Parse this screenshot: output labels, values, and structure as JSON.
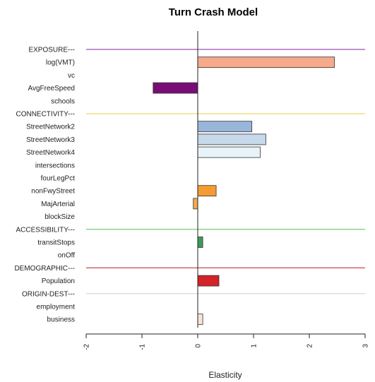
{
  "chart_data": {
    "type": "bar",
    "orientation": "horizontal",
    "title": "Turn Crash Model",
    "xlabel": "Elasticity",
    "ylabel": "",
    "xlim": [
      -2,
      3
    ],
    "xticks": [
      "-2",
      "-1",
      "0",
      "1",
      "2",
      "3"
    ],
    "grid": false,
    "categories": [
      {
        "label": "EXPOSURE---",
        "group": true,
        "color": "#9b4fb5"
      },
      {
        "label": "log(VMT)",
        "value": 2.45,
        "color": "#f7a98c"
      },
      {
        "label": "vc",
        "value": null
      },
      {
        "label": "AvgFreeSpeed",
        "value": -0.8,
        "color": "#7a0c77"
      },
      {
        "label": "schools",
        "value": null
      },
      {
        "label": "CONNECTIVITY---",
        "group": true,
        "color": "#e9d86a"
      },
      {
        "label": "StreetNetwork2",
        "value": 0.97,
        "color": "#98b6da"
      },
      {
        "label": "StreetNetwork3",
        "value": 1.22,
        "color": "#c6d8ea"
      },
      {
        "label": "StreetNetwork4",
        "value": 1.12,
        "color": "#e7f3f8"
      },
      {
        "label": "intersections",
        "value": null
      },
      {
        "label": "fourLegPct",
        "value": null
      },
      {
        "label": "nonFwyStreet",
        "value": 0.33,
        "color": "#f59b33"
      },
      {
        "label": "MajArterial",
        "value": -0.08,
        "color": "#f0aa4a"
      },
      {
        "label": "blockSize",
        "value": null
      },
      {
        "label": "ACCESSIBILITY---",
        "group": true,
        "color": "#6ac46a"
      },
      {
        "label": "transitStops",
        "value": 0.09,
        "color": "#3c9a5a"
      },
      {
        "label": "onOff",
        "value": null
      },
      {
        "label": "DEMOGRAPHIC---",
        "group": true,
        "color": "#c9474f"
      },
      {
        "label": "Population",
        "value": 0.38,
        "color": "#d22329"
      },
      {
        "label": "ORIGIN-DEST---",
        "group": true,
        "color": "#d3d3d3"
      },
      {
        "label": "employment",
        "value": null
      },
      {
        "label": "business",
        "value": 0.09,
        "color": "#fbe2d9"
      }
    ]
  }
}
